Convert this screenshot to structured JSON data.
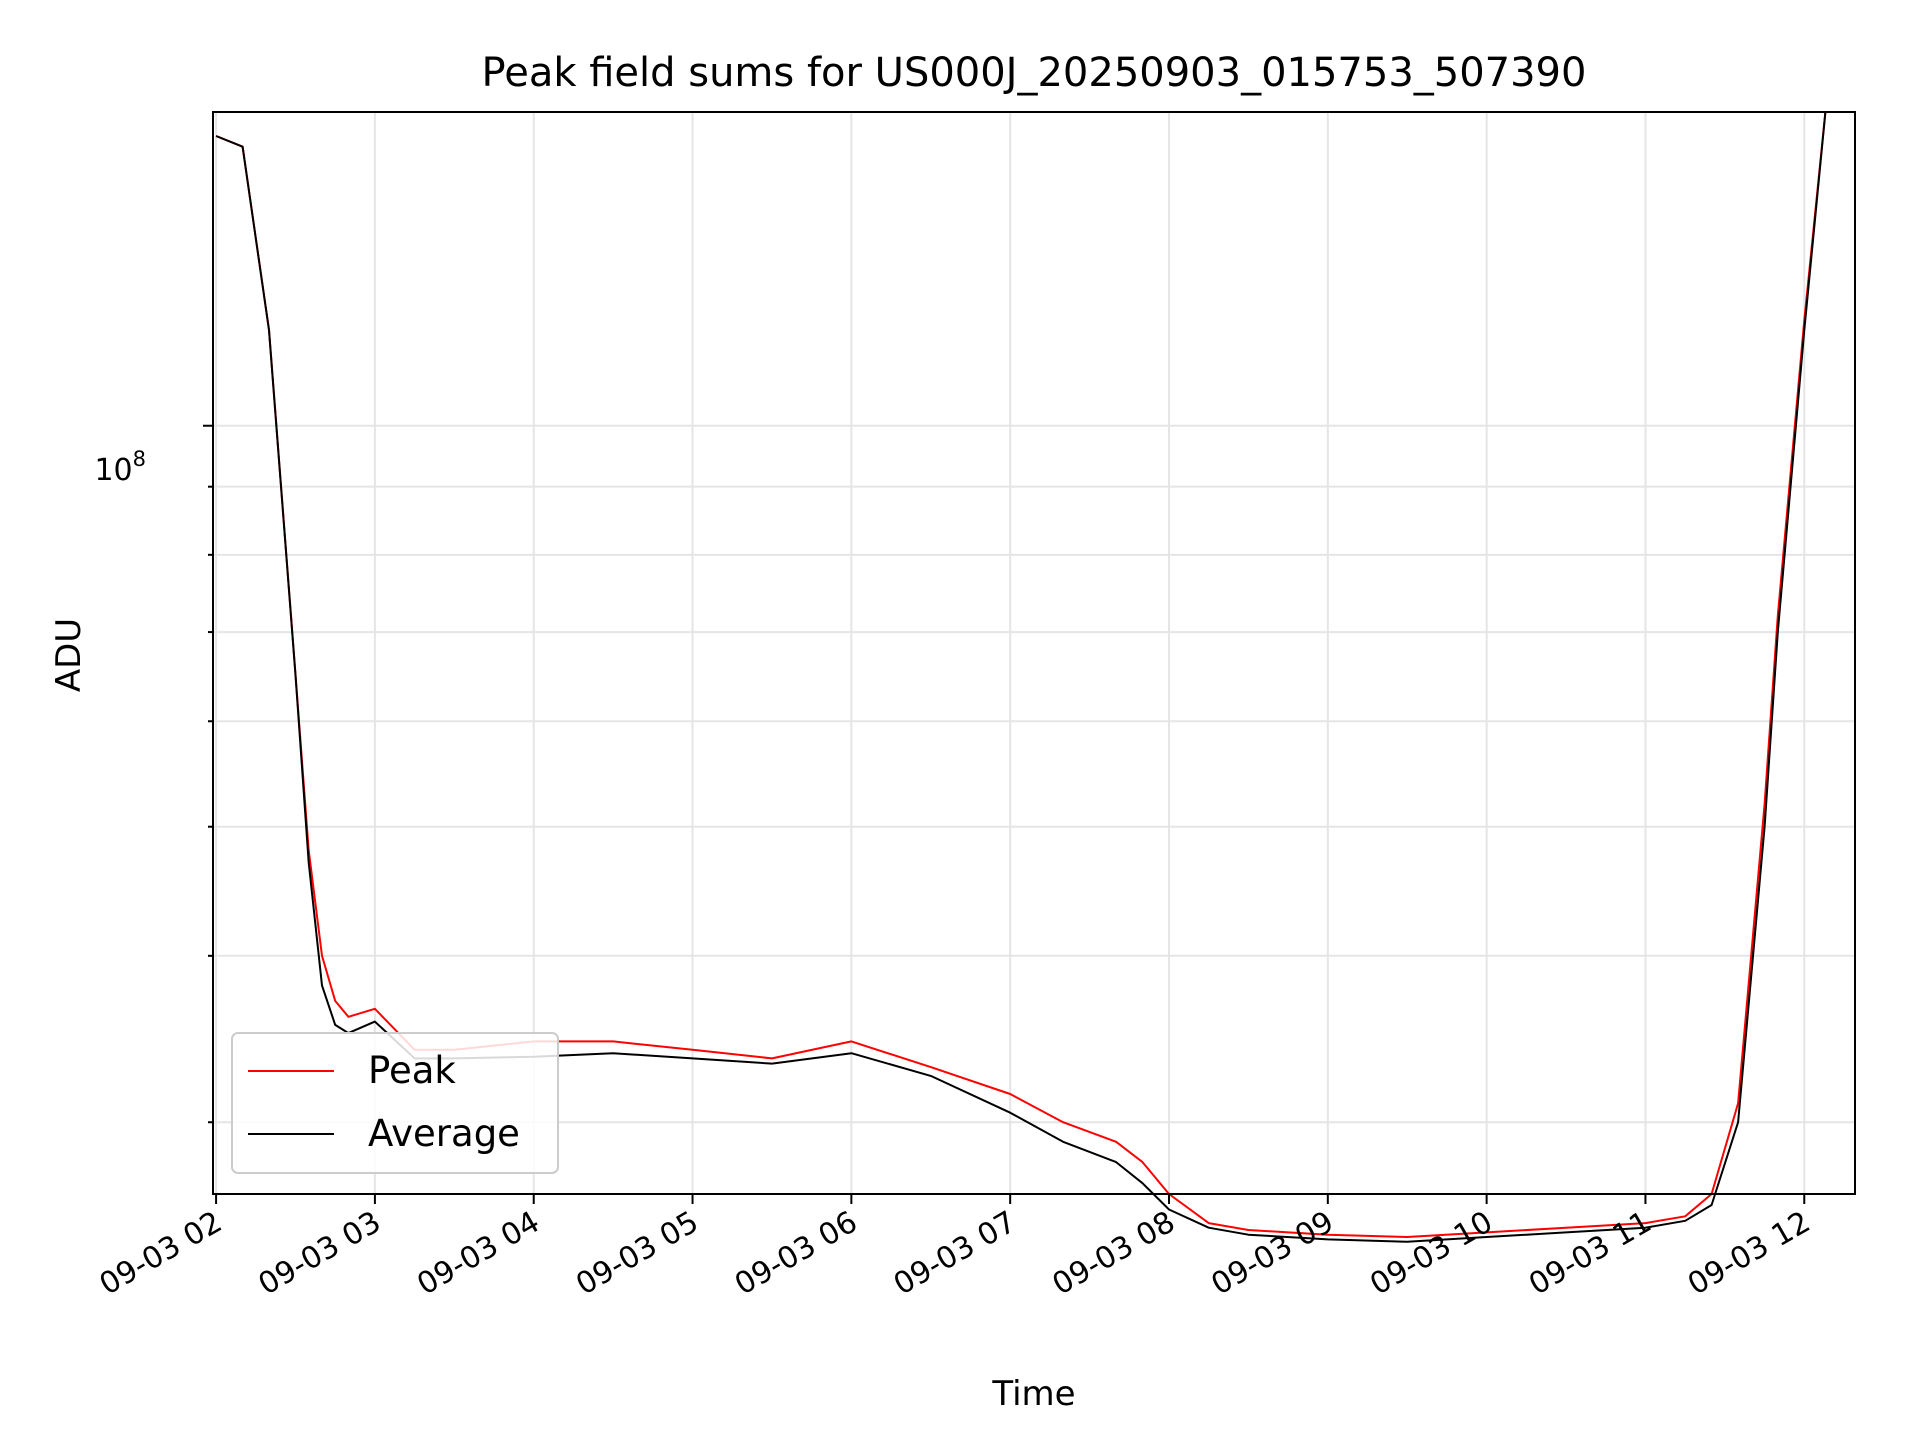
{
  "chart_data": {
    "type": "line",
    "title": "Peak field sums for US000J_20250903_015753_507390",
    "xlabel": "Time",
    "ylabel": "ADU",
    "y_scale": "log",
    "x_ticks": [
      "09-03 02",
      "09-03 03",
      "09-03 04",
      "09-03 05",
      "09-03 06",
      "09-03 07",
      "09-03 08",
      "09-03 09",
      "09-03 10",
      "09-03 11",
      "09-03 12"
    ],
    "y_tick_major": {
      "base": "10",
      "exponent": "8"
    },
    "xlim": [
      "09-03 01:58:50",
      "09-03 12:19:10"
    ],
    "ylim": [
      26500000,
      172000000
    ],
    "grid": true,
    "legend": {
      "position": "lower-left",
      "entries": [
        "Peak",
        "Average"
      ]
    },
    "series": [
      {
        "name": "Peak",
        "color": "#ff0000",
        "x": [
          "09-03 02:00",
          "09-03 02:10",
          "09-03 02:20",
          "09-03 02:30",
          "09-03 02:35",
          "09-03 02:40",
          "09-03 02:45",
          "09-03 02:50",
          "09-03 03:00",
          "09-03 03:15",
          "09-03 03:30",
          "09-03 04:00",
          "09-03 04:30",
          "09-03 05:00",
          "09-03 05:30",
          "09-03 06:00",
          "09-03 06:30",
          "09-03 07:00",
          "09-03 07:20",
          "09-03 07:40",
          "09-03 07:50",
          "09-03 08:00",
          "09-03 08:15",
          "09-03 08:30",
          "09-03 09:00",
          "09-03 09:30",
          "09-03 10:00",
          "09-03 10:30",
          "09-03 11:00",
          "09-03 11:15",
          "09-03 11:25",
          "09-03 11:35",
          "09-03 11:45",
          "09-03 11:50",
          "09-03 12:00",
          "09-03 12:08"
        ],
        "y": [
          165000000,
          162000000,
          118000000,
          65000000,
          48000000,
          40000000,
          37000000,
          36000000,
          36500000,
          34000000,
          34000000,
          34500000,
          34500000,
          34000000,
          33500000,
          34500000,
          33000000,
          31500000,
          30000000,
          29000000,
          28000000,
          26500000,
          25200000,
          24900000,
          24700000,
          24600000,
          24800000,
          25000000,
          25200000,
          25500000,
          26500000,
          31000000,
          52000000,
          72000000,
          120000000,
          172000000
        ]
      },
      {
        "name": "Average",
        "color": "#000000",
        "x": [
          "09-03 02:00",
          "09-03 02:10",
          "09-03 02:20",
          "09-03 02:30",
          "09-03 02:35",
          "09-03 02:40",
          "09-03 02:45",
          "09-03 02:50",
          "09-03 03:00",
          "09-03 03:15",
          "09-03 03:30",
          "09-03 04:00",
          "09-03 04:30",
          "09-03 05:00",
          "09-03 05:30",
          "09-03 06:00",
          "09-03 06:30",
          "09-03 07:00",
          "09-03 07:20",
          "09-03 07:40",
          "09-03 07:50",
          "09-03 08:00",
          "09-03 08:15",
          "09-03 08:30",
          "09-03 09:00",
          "09-03 09:30",
          "09-03 10:00",
          "09-03 10:30",
          "09-03 11:00",
          "09-03 11:15",
          "09-03 11:25",
          "09-03 11:35",
          "09-03 11:45",
          "09-03 11:50",
          "09-03 12:00",
          "09-03 12:08"
        ],
        "y": [
          165000000,
          162000000,
          118000000,
          65000000,
          47000000,
          38000000,
          35500000,
          35000000,
          35700000,
          33500000,
          33500000,
          33600000,
          33800000,
          33500000,
          33200000,
          33800000,
          32500000,
          30500000,
          29000000,
          28000000,
          27000000,
          25800000,
          25000000,
          24700000,
          24500000,
          24400000,
          24600000,
          24800000,
          25000000,
          25300000,
          26000000,
          30000000,
          50000000,
          70000000,
          118000000,
          172000000
        ]
      }
    ]
  }
}
